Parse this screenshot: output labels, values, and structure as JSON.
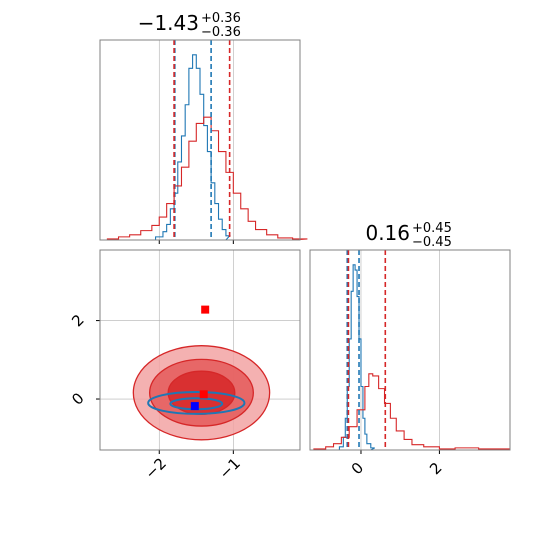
{
  "colors": {
    "blue": "#1f77b4",
    "red": "#d62728",
    "grid": "#b0b0b0",
    "frame": "#808080",
    "light_red": "#f2a3a3",
    "mid_red": "#e45a5a",
    "square_red": "#ff0000",
    "square_blue": "#0000ff"
  },
  "chart_data": [
    {
      "panel": "top-left",
      "type": "line",
      "title_main": "−1.43",
      "title_sup": "+0.36",
      "title_sub": "−0.36",
      "xlim": [
        -2.8,
        -0.1
      ],
      "xticks": [
        -2,
        -1
      ],
      "grid": true,
      "series": [
        {
          "color": "#1f77b4",
          "x": [
            -2.05,
            -1.95,
            -1.9,
            -1.85,
            -1.8,
            -1.75,
            -1.7,
            -1.65,
            -1.6,
            -1.55,
            -1.5,
            -1.45,
            -1.4,
            -1.35,
            -1.3,
            -1.25,
            -1.2,
            -1.15,
            -1.1
          ],
          "y": [
            3,
            8,
            15,
            30,
            45,
            75,
            100,
            130,
            165,
            178,
            165,
            140,
            110,
            85,
            55,
            35,
            20,
            10,
            4
          ]
        },
        {
          "color": "#d62728",
          "x": [
            -2.7,
            -2.55,
            -2.4,
            -2.25,
            -2.1,
            -2.0,
            -1.9,
            -1.8,
            -1.7,
            -1.6,
            -1.5,
            -1.4,
            -1.3,
            -1.2,
            -1.1,
            -1.0,
            -0.9,
            -0.8,
            -0.7,
            -0.55,
            -0.4,
            -0.2
          ],
          "y": [
            1,
            3,
            5,
            9,
            14,
            22,
            35,
            52,
            70,
            95,
            112,
            118,
            105,
            85,
            65,
            45,
            30,
            18,
            10,
            5,
            2,
            1
          ]
        }
      ],
      "vlines": [
        {
          "x": -1.79,
          "color": "#1f77b4"
        },
        {
          "x": -1.3,
          "color": "#1f77b4"
        },
        {
          "x": -1.8,
          "color": "#d62728"
        },
        {
          "x": -1.05,
          "color": "#d62728"
        }
      ]
    },
    {
      "panel": "bottom-left",
      "type": "contour",
      "xlim": [
        -2.8,
        -0.1
      ],
      "ylim": [
        -1.3,
        3.8
      ],
      "xticks": [
        -2,
        -1
      ],
      "yticks": [
        0,
        2
      ],
      "grid": true,
      "red_levels": [
        {
          "cx": -1.43,
          "cy": 0.16,
          "rx": 0.92,
          "ry": 1.2
        },
        {
          "cx": -1.43,
          "cy": 0.16,
          "rx": 0.7,
          "ry": 0.85
        },
        {
          "cx": -1.43,
          "cy": 0.16,
          "rx": 0.45,
          "ry": 0.55
        }
      ],
      "blue_levels": [
        {
          "cx": -1.5,
          "cy": -0.1,
          "rx": 0.65,
          "ry": 0.28
        },
        {
          "cx": -1.5,
          "cy": -0.12,
          "rx": 0.35,
          "ry": 0.14
        }
      ],
      "squares": [
        {
          "x": -1.38,
          "y": 2.28,
          "color": "#ff0000"
        },
        {
          "x": -1.4,
          "y": 0.12,
          "color": "#ff0000"
        },
        {
          "x": -1.52,
          "y": -0.18,
          "color": "#0000ff"
        }
      ]
    },
    {
      "panel": "bottom-right",
      "type": "line",
      "title_main": "0.16",
      "title_sup": "+0.45",
      "title_sub": "−0.45",
      "xlim": [
        -1.3,
        3.8
      ],
      "xticks": [
        0,
        2
      ],
      "grid": true,
      "series": [
        {
          "color": "#1f77b4",
          "x": [
            -0.55,
            -0.45,
            -0.4,
            -0.35,
            -0.3,
            -0.25,
            -0.2,
            -0.15,
            -0.1,
            -0.05,
            0.0,
            0.05,
            0.1,
            0.15,
            0.25
          ],
          "y": [
            3,
            12,
            30,
            60,
            105,
            150,
            175,
            170,
            145,
            105,
            60,
            30,
            15,
            6,
            2
          ]
        },
        {
          "color": "#d62728",
          "x": [
            -1.2,
            -0.9,
            -0.7,
            -0.5,
            -0.3,
            -0.1,
            0.1,
            0.2,
            0.3,
            0.45,
            0.6,
            0.75,
            0.9,
            1.1,
            1.3,
            1.6,
            2.0,
            2.4,
            3.0,
            3.4
          ],
          "y": [
            1,
            3,
            6,
            12,
            22,
            38,
            60,
            72,
            70,
            58,
            44,
            30,
            18,
            10,
            5,
            3,
            1,
            2,
            1,
            1
          ]
        }
      ],
      "vlines": [
        {
          "x": -0.35,
          "color": "#1f77b4"
        },
        {
          "x": -0.05,
          "color": "#1f77b4"
        },
        {
          "x": -0.32,
          "color": "#d62728"
        },
        {
          "x": 0.62,
          "color": "#d62728"
        }
      ]
    }
  ]
}
